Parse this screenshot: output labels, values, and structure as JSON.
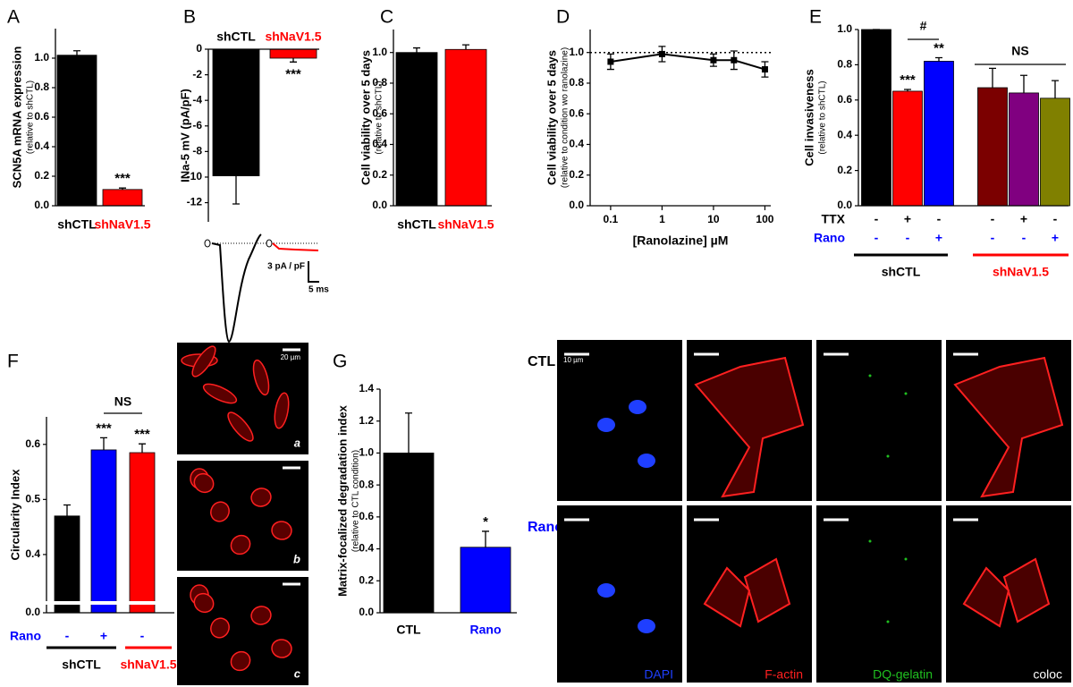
{
  "chart_data": [
    {
      "panel": "A",
      "type": "bar",
      "ylabel": "SCN5A mRNA expression",
      "ylabel_sub": "(relative to shCTL)",
      "categories": [
        "shCTL",
        "shNaV1.5"
      ],
      "values": [
        1.02,
        0.11
      ],
      "errors": [
        0.03,
        0.01
      ],
      "colors": [
        "#000000",
        "#ff0000"
      ],
      "significance": [
        null,
        "***"
      ],
      "ylim": [
        0,
        1.2
      ],
      "yticks": [
        {
          "value": 0,
          "label": "0.0"
        },
        0.2,
        0.4,
        0.6,
        0.8,
        {
          "value": 1,
          "label": "1.0"
        }
      ]
    },
    {
      "panel": "B",
      "type": "bar",
      "ylabel": "INa-5 mV (pA/pF)",
      "categories": [
        "shCTL",
        "shNaV1.5"
      ],
      "values": [
        -9.9,
        -0.7
      ],
      "errors": [
        2.2,
        0.3
      ],
      "colors": [
        "#000000",
        "#ff0000"
      ],
      "significance": [
        null,
        "***"
      ],
      "ylim": [
        -13.5,
        0
      ],
      "yticks": [
        0,
        -2,
        -4,
        -6,
        -8,
        -10,
        -12
      ],
      "scale_bar": [
        "3 pA / pF",
        "5 ms"
      ]
    },
    {
      "panel": "C",
      "type": "bar",
      "ylabel": "Cell viability over 5 days",
      "ylabel_sub": "(relative to shCTL)",
      "categories": [
        "shCTL",
        "shNaV1.5"
      ],
      "values": [
        1.0,
        1.02
      ],
      "errors": [
        0.03,
        0.03
      ],
      "colors": [
        "#000000",
        "#ff0000"
      ],
      "ylim": [
        0,
        1.15
      ],
      "yticks": [
        {
          "value": 0,
          "label": "0.0"
        },
        0.2,
        0.4,
        0.6,
        0.8,
        {
          "value": 1,
          "label": "1.0"
        }
      ]
    },
    {
      "panel": "D",
      "type": "line",
      "ylabel": "Cell viability over 5 days",
      "ylabel_sub": "(relative to condition wo ranolazine)",
      "xlabel": "[Ranolazine] µM",
      "x": [
        0.1,
        1,
        10,
        25,
        100
      ],
      "values": [
        0.94,
        0.99,
        0.95,
        0.95,
        0.89
      ],
      "errors": [
        0.05,
        0.05,
        0.04,
        0.06,
        0.05
      ],
      "color": "#000000",
      "reference_line": 1.0,
      "xscale": "log",
      "xlim": [
        0.04,
        130
      ],
      "xticks": [
        0.1,
        1,
        10,
        100
      ],
      "ylim": [
        0,
        1.15
      ],
      "yticks": [
        {
          "value": 0,
          "label": "0.0"
        },
        0.2,
        0.4,
        0.6,
        0.8,
        {
          "value": 1,
          "label": "1.0"
        }
      ]
    },
    {
      "panel": "E",
      "type": "bar",
      "ylabel": "Cell invasiveness",
      "ylabel_sub": "(relative to shCTL)",
      "values": [
        1.0,
        0.65,
        0.82,
        0.67,
        0.64,
        0.61
      ],
      "errors": [
        0,
        0.01,
        0.02,
        0.11,
        0.1,
        0.1
      ],
      "colors": [
        "#000000",
        "#ff0000",
        "#0000ff",
        "#7b0000",
        "#800080",
        "#808000"
      ],
      "significance": [
        null,
        "***",
        "**",
        null,
        null,
        null
      ],
      "comparisons": [
        "#",
        "NS"
      ],
      "conditions": [
        {
          "name": "TTX",
          "color": "#000000",
          "values": [
            "-",
            "+",
            "-",
            "-",
            "+",
            "-"
          ]
        },
        {
          "name": "Rano",
          "color": "#0000ff",
          "values": [
            "-",
            "-",
            "+",
            "-",
            "-",
            "+"
          ]
        }
      ],
      "groups": [
        "shCTL",
        "shNaV1.5"
      ],
      "group_colors": [
        "#000000",
        "#ff0000"
      ],
      "ylim": [
        0,
        1.0
      ],
      "yticks": [
        {
          "value": 0,
          "label": "0.0"
        },
        0.2,
        0.4,
        0.6,
        0.8,
        {
          "value": 1,
          "label": "1.0"
        }
      ]
    },
    {
      "panel": "F",
      "type": "bar",
      "ylabel": "Circularity Index",
      "values": [
        0.47,
        0.59,
        0.585
      ],
      "errors": [
        0.02,
        0.022,
        0.016
      ],
      "colors": [
        "#000000",
        "#0000ff",
        "#ff0000"
      ],
      "significance": [
        null,
        "***",
        "***"
      ],
      "comparisons": [
        "NS"
      ],
      "conditions": [
        {
          "name": "Rano",
          "color": "#0000ff",
          "values": [
            "-",
            "+",
            "-"
          ]
        }
      ],
      "groups": [
        "shCTL",
        "shNaV1.5"
      ],
      "group_colors": [
        "#000000",
        "#ff0000"
      ],
      "ylim": [
        0,
        0.65
      ],
      "axis_break": [
        0,
        0.33
      ],
      "yticks": [
        {
          "value": 0,
          "label": "0.0"
        },
        0.4,
        0.5,
        0.6
      ]
    },
    {
      "panel": "G",
      "type": "bar",
      "ylabel": "Matrix-focalized degradation index",
      "ylabel_sub": "(relative to CTL condition)",
      "categories": [
        "CTL",
        "Rano"
      ],
      "values": [
        1.0,
        0.41
      ],
      "errors": [
        0.25,
        0.1
      ],
      "colors": [
        "#000000",
        "#0000ff"
      ],
      "significance": [
        null,
        "*"
      ],
      "ylim": [
        0,
        1.4
      ],
      "yticks": [
        {
          "value": 0,
          "label": "0.0"
        },
        0.2,
        0.4,
        0.6,
        0.8,
        {
          "value": 1,
          "label": "1.0"
        },
        1.2,
        1.4
      ]
    }
  ],
  "images": {
    "F": {
      "labels": [
        "a",
        "b",
        "c"
      ],
      "scale": "20 µm"
    },
    "G": {
      "rows": [
        "CTL",
        "Rano"
      ],
      "columns": [
        "DAPI",
        "F-actin",
        "DQ-gelatin",
        "coloc"
      ],
      "scale": "10 µm"
    }
  }
}
